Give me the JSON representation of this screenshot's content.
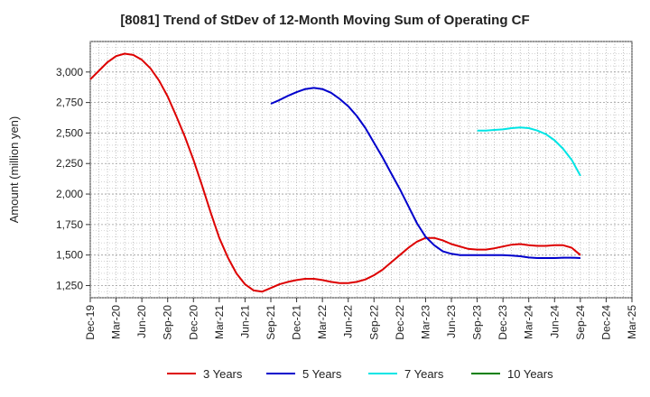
{
  "chart_data": {
    "type": "line",
    "title": "[8081]  Trend of StDev of 12-Month Moving Sum of Operating CF",
    "ylabel": "Amount (million yen)",
    "xlabel": "",
    "ylim": [
      1150,
      3250
    ],
    "yticks": [
      "1,250",
      "1,500",
      "1,750",
      "2,000",
      "2,250",
      "2,500",
      "2,750",
      "3,000"
    ],
    "ytick_values": [
      1250,
      1500,
      1750,
      2000,
      2250,
      2500,
      2750,
      3000
    ],
    "xticks": [
      "Dec-19",
      "Mar-20",
      "Jun-20",
      "Sep-20",
      "Dec-20",
      "Mar-21",
      "Jun-21",
      "Sep-21",
      "Dec-21",
      "Mar-22",
      "Jun-22",
      "Sep-22",
      "Dec-22",
      "Mar-23",
      "Jun-23",
      "Sep-23",
      "Dec-23",
      "Mar-24",
      "Jun-24",
      "Sep-24",
      "Dec-24",
      "Mar-25"
    ],
    "grid": true,
    "legend_position": "bottom",
    "series": [
      {
        "name": "3 Years",
        "color": "#dd0000",
        "x": [
          "Dec-19",
          "Jan-20",
          "Feb-20",
          "Mar-20",
          "Apr-20",
          "May-20",
          "Jun-20",
          "Jul-20",
          "Aug-20",
          "Sep-20",
          "Oct-20",
          "Nov-20",
          "Dec-20",
          "Jan-21",
          "Feb-21",
          "Mar-21",
          "Apr-21",
          "May-21",
          "Jun-21",
          "Jul-21",
          "Aug-21",
          "Sep-21",
          "Oct-21",
          "Nov-21",
          "Dec-21",
          "Jan-22",
          "Feb-22",
          "Mar-22",
          "Apr-22",
          "May-22",
          "Jun-22",
          "Jul-22",
          "Aug-22",
          "Sep-22",
          "Oct-22",
          "Nov-22",
          "Dec-22",
          "Jan-23",
          "Feb-23",
          "Mar-23",
          "Apr-23",
          "May-23",
          "Jun-23",
          "Jul-23",
          "Aug-23",
          "Sep-23",
          "Oct-23",
          "Nov-23",
          "Dec-23",
          "Jan-24",
          "Feb-24",
          "Mar-24",
          "Apr-24",
          "May-24",
          "Jun-24",
          "Jul-24",
          "Aug-24",
          "Sep-24"
        ],
        "values": [
          2940,
          3010,
          3080,
          3130,
          3150,
          3140,
          3100,
          3030,
          2930,
          2800,
          2640,
          2470,
          2280,
          2070,
          1850,
          1640,
          1480,
          1350,
          1260,
          1210,
          1200,
          1230,
          1260,
          1280,
          1295,
          1305,
          1305,
          1295,
          1280,
          1270,
          1270,
          1280,
          1300,
          1335,
          1380,
          1440,
          1500,
          1560,
          1610,
          1640,
          1640,
          1620,
          1590,
          1570,
          1550,
          1545,
          1545,
          1555,
          1570,
          1585,
          1590,
          1580,
          1575,
          1575,
          1580,
          1580,
          1560,
          1500
        ]
      },
      {
        "name": "5 Years",
        "color": "#0000cc",
        "x": [
          "Sep-21",
          "Oct-21",
          "Nov-21",
          "Dec-21",
          "Jan-22",
          "Feb-22",
          "Mar-22",
          "Apr-22",
          "May-22",
          "Jun-22",
          "Jul-22",
          "Aug-22",
          "Sep-22",
          "Oct-22",
          "Nov-22",
          "Dec-22",
          "Jan-23",
          "Feb-23",
          "Mar-23",
          "Apr-23",
          "May-23",
          "Jun-23",
          "Jul-23",
          "Aug-23",
          "Sep-23",
          "Oct-23",
          "Nov-23",
          "Dec-23",
          "Jan-24",
          "Feb-24",
          "Mar-24",
          "Apr-24",
          "May-24",
          "Jun-24",
          "Jul-24",
          "Aug-24",
          "Sep-24"
        ],
        "values": [
          2740,
          2770,
          2805,
          2835,
          2860,
          2870,
          2860,
          2830,
          2780,
          2720,
          2640,
          2540,
          2420,
          2300,
          2170,
          2040,
          1900,
          1760,
          1650,
          1580,
          1530,
          1510,
          1500,
          1500,
          1500,
          1500,
          1500,
          1500,
          1495,
          1490,
          1480,
          1475,
          1475,
          1475,
          1478,
          1478,
          1475
        ]
      },
      {
        "name": "7 Years",
        "color": "#00e5e5",
        "x": [
          "Sep-23",
          "Oct-23",
          "Nov-23",
          "Dec-23",
          "Jan-24",
          "Feb-24",
          "Mar-24",
          "Apr-24",
          "May-24",
          "Jun-24",
          "Jul-24",
          "Aug-24",
          "Sep-24"
        ],
        "values": [
          2520,
          2520,
          2525,
          2530,
          2540,
          2545,
          2540,
          2520,
          2490,
          2440,
          2370,
          2280,
          2150
        ]
      },
      {
        "name": "10 Years",
        "color": "#008000",
        "x": [],
        "values": []
      }
    ]
  }
}
